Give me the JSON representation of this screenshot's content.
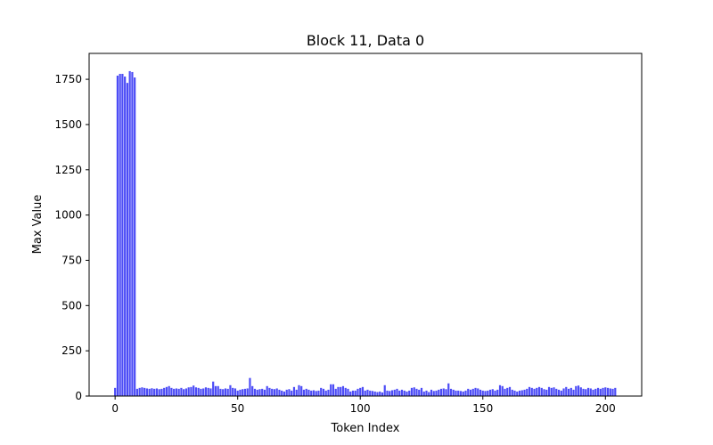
{
  "chart_data": {
    "type": "bar",
    "title": "Block 11, Data 0",
    "xlabel": "Token Index",
    "ylabel": "Max Value",
    "color": "#4c4cf6",
    "xlim": [
      -10.6,
      214.8
    ],
    "xticks": [
      0,
      50,
      100,
      150,
      200
    ],
    "ylim": [
      0,
      1893
    ],
    "yticks": [
      0,
      250,
      500,
      750,
      1000,
      1250,
      1500,
      1750
    ],
    "x": [
      0,
      1,
      2,
      3,
      4,
      5,
      6,
      7,
      8,
      9,
      10,
      11,
      12,
      13,
      14,
      15,
      16,
      17,
      18,
      19,
      20,
      21,
      22,
      23,
      24,
      25,
      26,
      27,
      28,
      29,
      30,
      31,
      32,
      33,
      34,
      35,
      36,
      37,
      38,
      39,
      40,
      41,
      42,
      43,
      44,
      45,
      46,
      47,
      48,
      49,
      50,
      51,
      52,
      53,
      54,
      55,
      56,
      57,
      58,
      59,
      60,
      61,
      62,
      63,
      64,
      65,
      66,
      67,
      68,
      69,
      70,
      71,
      72,
      73,
      74,
      75,
      76,
      77,
      78,
      79,
      80,
      81,
      82,
      83,
      84,
      85,
      86,
      87,
      88,
      89,
      90,
      91,
      92,
      93,
      94,
      95,
      96,
      97,
      98,
      99,
      100,
      101,
      102,
      103,
      104,
      105,
      106,
      107,
      108,
      109,
      110,
      111,
      112,
      113,
      114,
      115,
      116,
      117,
      118,
      119,
      120,
      121,
      122,
      123,
      124,
      125,
      126,
      127,
      128,
      129,
      130,
      131,
      132,
      133,
      134,
      135,
      136,
      137,
      138,
      139,
      140,
      141,
      142,
      143,
      144,
      145,
      146,
      147,
      148,
      149,
      150,
      151,
      152,
      153,
      154,
      155,
      156,
      157,
      158,
      159,
      160,
      161,
      162,
      163,
      164,
      165,
      166,
      167,
      168,
      169,
      170,
      171,
      172,
      173,
      174,
      175,
      176,
      177,
      178,
      179,
      180,
      181,
      182,
      183,
      184,
      185,
      186,
      187,
      188,
      189,
      190,
      191,
      192,
      193,
      194,
      195,
      196,
      197,
      198,
      199,
      200,
      201,
      202,
      203,
      204
    ],
    "values": [
      45,
      1770,
      1780,
      1780,
      1765,
      1730,
      1795,
      1790,
      1760,
      40,
      45,
      48,
      45,
      42,
      40,
      43,
      40,
      42,
      38,
      40,
      45,
      50,
      55,
      45,
      40,
      42,
      40,
      45,
      38,
      42,
      48,
      50,
      58,
      48,
      45,
      40,
      42,
      48,
      45,
      42,
      80,
      55,
      55,
      40,
      38,
      42,
      40,
      60,
      45,
      42,
      30,
      35,
      38,
      40,
      42,
      100,
      55,
      40,
      35,
      38,
      40,
      35,
      55,
      45,
      40,
      38,
      42,
      35,
      30,
      25,
      35,
      38,
      30,
      50,
      35,
      60,
      55,
      35,
      40,
      35,
      30,
      32,
      28,
      30,
      45,
      40,
      30,
      35,
      65,
      65,
      40,
      50,
      50,
      55,
      45,
      40,
      25,
      30,
      30,
      40,
      45,
      50,
      30,
      35,
      30,
      28,
      25,
      22,
      25,
      20,
      60,
      30,
      28,
      32,
      35,
      40,
      30,
      35,
      30,
      25,
      30,
      45,
      48,
      40,
      35,
      45,
      25,
      30,
      22,
      35,
      28,
      30,
      35,
      40,
      42,
      38,
      70,
      40,
      35,
      30,
      30,
      28,
      25,
      30,
      40,
      35,
      40,
      45,
      42,
      35,
      30,
      28,
      30,
      35,
      38,
      30,
      35,
      60,
      55,
      40,
      45,
      50,
      35,
      30,
      25,
      30,
      32,
      35,
      40,
      50,
      45,
      40,
      45,
      50,
      45,
      38,
      35,
      50,
      45,
      48,
      40,
      35,
      30,
      42,
      50,
      40,
      45,
      35,
      55,
      58,
      48,
      40,
      38,
      45,
      42,
      35,
      40,
      45,
      40,
      45,
      48,
      45,
      42,
      40,
      45
    ]
  }
}
